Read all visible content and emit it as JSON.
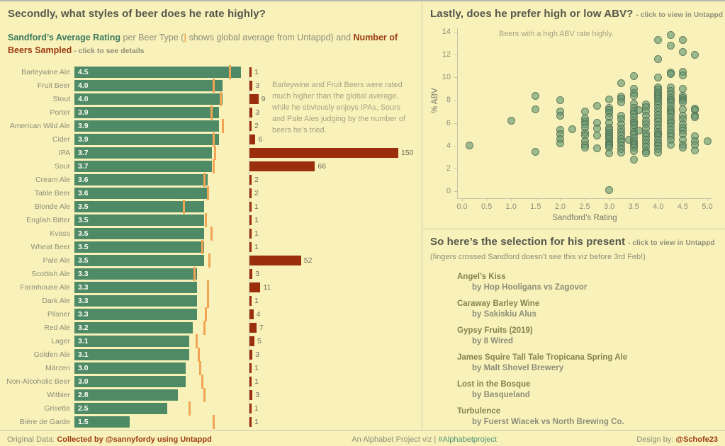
{
  "colors": {
    "background": "#f8f2ba",
    "rating_bar_green": "#4e8a66",
    "count_bar_red": "#9a2e0d",
    "global_tick_orange": "#f2a454",
    "header_gray": "#56574c",
    "muted_gray": "#8d8d79"
  },
  "left_panel": {
    "title": "Secondly, what styles of beer does he rate highly?",
    "subtitle": {
      "rating_label": "Sandford’s Average Rating",
      "mid1": " per Beer Type (",
      "pipe": "|",
      "mid2": " shows global average from Untappd) and ",
      "count_label": "Number of Beers Sampled",
      "suffix": " - click to see details"
    },
    "annotation": "Barleywine and Fruit Beers were rated much higher than the global average, while he obviously enjoys IPAs, Sours and Pale Ales judging by the number of beers he’s tried."
  },
  "right_top_panel": {
    "title": "Lastly, does he prefer high or low ABV?",
    "title_suffix": "- click to view in Untappd",
    "annotation": "Beers with a high ABV rate highly."
  },
  "right_bottom_panel": {
    "title": "So here’s the selection for his present",
    "title_suffix": "- click to view in Untappd",
    "subtitle": "(fingers crossed Sandford doesn’t see this viz before 3rd Feb!)",
    "beers": [
      {
        "name": "Angel’s Kiss",
        "brewery": "by Hop Hooligans vs Zagovor"
      },
      {
        "name": "Caraway Barley Wine",
        "brewery": "by Sakiskiu Alus"
      },
      {
        "name": "Gypsy Fruits (2019)",
        "brewery": "by 8 Wired"
      },
      {
        "name": "James Squire Tall Tale Tropicana Spring Ale",
        "brewery": "by Malt Shovel Brewery"
      },
      {
        "name": "Lost in the Bosque",
        "brewery": "by Basqueland"
      },
      {
        "name": "Turbulence",
        "brewery": "by Fuerst Wiacek vs North Brewing Co."
      }
    ]
  },
  "footer": {
    "prefix": "Original Data: ",
    "credit": "Collected by @sannyfordy using Untappd",
    "center_text": "An Alphabet Project viz | ",
    "hashtag": "#Alphabetproject",
    "design_prefix": "Design by: ",
    "designer": "@Schofe23"
  },
  "chart_data": [
    {
      "type": "bar",
      "title": "Sandford’s Average Rating per Beer Type and Number of Beers Sampled",
      "orientation": "horizontal",
      "rating_axis_max": 5,
      "categories": [
        "Barleywine Ale",
        "Fruit Beer",
        "Stout",
        "Porter",
        "American Wild Ale",
        "Cider",
        "IPA",
        "Sour",
        "Cream Ale",
        "Table Beer",
        "Blonde Ale",
        "English Bitter",
        "Kvass",
        "Wheat Beer",
        "Pale Ale",
        "Scottish Ale",
        "Farmhouse Ale",
        "Dark Ale",
        "Pilsner",
        "Red Ale",
        "Lager",
        "Golden Ale",
        "Märzen",
        "Non-Alcoholic Beer",
        "Witbier",
        "Grisette",
        "Bière de Garde"
      ],
      "series": [
        {
          "name": "Sandford’s Average Rating",
          "values": [
            4.5,
            4.0,
            4.0,
            3.9,
            3.9,
            3.9,
            3.7,
            3.7,
            3.6,
            3.6,
            3.5,
            3.5,
            3.5,
            3.5,
            3.5,
            3.3,
            3.3,
            3.3,
            3.3,
            3.2,
            3.1,
            3.1,
            3.0,
            3.0,
            2.8,
            2.5,
            1.5
          ]
        },
        {
          "name": "Global Average from Untappd",
          "values": [
            4.2,
            3.75,
            3.95,
            3.7,
            4.0,
            3.75,
            3.8,
            3.75,
            3.5,
            3.6,
            2.95,
            3.55,
            3.7,
            3.45,
            3.65,
            3.25,
            3.6,
            3.6,
            3.55,
            3.5,
            3.3,
            3.35,
            3.4,
            3.45,
            3.5,
            3.1,
            3.75
          ]
        },
        {
          "name": "Number of Beers Sampled",
          "values": [
            1,
            3,
            9,
            3,
            2,
            6,
            150,
            66,
            2,
            2,
            1,
            1,
            1,
            1,
            52,
            3,
            11,
            1,
            4,
            7,
            5,
            3,
            1,
            1,
            3,
            1,
            1
          ]
        }
      ]
    },
    {
      "type": "scatter",
      "title": "Lastly, does he prefer high or low ABV?",
      "xlabel": "Sandford’s Rating",
      "ylabel": "% ABV",
      "xlim": [
        0,
        5
      ],
      "ylim": [
        0,
        14
      ],
      "x_tick_labels": [
        "0.0",
        "0.5",
        "1.0",
        "1.5",
        "2.0",
        "2.5",
        "3.0",
        "3.5",
        "4.0",
        "4.5",
        "5.0"
      ],
      "y_tick_labels": [
        "0",
        "2",
        "4",
        "6",
        "8",
        "10",
        "12",
        "14"
      ],
      "annotation": "Beers with a high ABV rate highly.",
      "points": [
        [
          0.15,
          4.0
        ],
        [
          1.0,
          6.2
        ],
        [
          1.5,
          8.4
        ],
        [
          1.5,
          7.2
        ],
        [
          1.5,
          3.45
        ],
        [
          2.0,
          8.0
        ],
        [
          2.0,
          7.0
        ],
        [
          2.0,
          6.6
        ],
        [
          2.0,
          5.4
        ],
        [
          2.0,
          5.0
        ],
        [
          2.0,
          4.6
        ],
        [
          2.0,
          4.2
        ],
        [
          2.25,
          5.45
        ],
        [
          2.5,
          7.0
        ],
        [
          2.5,
          6.4
        ],
        [
          2.5,
          6.15
        ],
        [
          2.5,
          5.9
        ],
        [
          2.5,
          5.6
        ],
        [
          2.5,
          5.15
        ],
        [
          2.5,
          4.9
        ],
        [
          2.5,
          4.4
        ],
        [
          2.5,
          4.05
        ],
        [
          2.5,
          3.85
        ],
        [
          2.75,
          7.5
        ],
        [
          2.75,
          6.0
        ],
        [
          2.75,
          5.5
        ],
        [
          2.75,
          4.9
        ],
        [
          2.75,
          3.75
        ],
        [
          3.0,
          8.05
        ],
        [
          3.0,
          7.3
        ],
        [
          3.0,
          7.1
        ],
        [
          3.0,
          6.9
        ],
        [
          3.0,
          6.5
        ],
        [
          3.0,
          6.0
        ],
        [
          3.0,
          5.6
        ],
        [
          3.0,
          5.4
        ],
        [
          3.0,
          5.15
        ],
        [
          3.0,
          4.95
        ],
        [
          3.0,
          4.75
        ],
        [
          3.0,
          4.55
        ],
        [
          3.0,
          4.35
        ],
        [
          3.0,
          4.15
        ],
        [
          3.0,
          4.0
        ],
        [
          3.0,
          3.8
        ],
        [
          3.0,
          3.3
        ],
        [
          3.0,
          0.1
        ],
        [
          3.25,
          9.5
        ],
        [
          3.25,
          8.3
        ],
        [
          3.25,
          8.1
        ],
        [
          3.25,
          7.8
        ],
        [
          3.25,
          6.6
        ],
        [
          3.25,
          6.3
        ],
        [
          3.25,
          5.9
        ],
        [
          3.25,
          5.5
        ],
        [
          3.25,
          5.2
        ],
        [
          3.25,
          4.9
        ],
        [
          3.25,
          4.6
        ],
        [
          3.25,
          4.3
        ],
        [
          3.25,
          4.0
        ],
        [
          3.25,
          3.7
        ],
        [
          3.25,
          3.4
        ],
        [
          3.4,
          4.5
        ],
        [
          3.5,
          10.1
        ],
        [
          3.5,
          9.0
        ],
        [
          3.5,
          8.6
        ],
        [
          3.5,
          8.4
        ],
        [
          3.5,
          7.7
        ],
        [
          3.5,
          7.3
        ],
        [
          3.5,
          7.0
        ],
        [
          3.5,
          6.8
        ],
        [
          3.5,
          6.5
        ],
        [
          3.5,
          6.2
        ],
        [
          3.5,
          6.0
        ],
        [
          3.5,
          5.8
        ],
        [
          3.5,
          5.5
        ],
        [
          3.5,
          5.2
        ],
        [
          3.5,
          5.0
        ],
        [
          3.5,
          4.7
        ],
        [
          3.5,
          4.4
        ],
        [
          3.5,
          4.2
        ],
        [
          3.5,
          4.0
        ],
        [
          3.5,
          3.8
        ],
        [
          3.5,
          3.5
        ],
        [
          3.5,
          2.75
        ],
        [
          3.6,
          7.1
        ],
        [
          3.6,
          5.3
        ],
        [
          3.75,
          7.6
        ],
        [
          3.75,
          7.4
        ],
        [
          3.75,
          7.0
        ],
        [
          3.75,
          6.6
        ],
        [
          3.75,
          6.2
        ],
        [
          3.75,
          5.9
        ],
        [
          3.75,
          5.5
        ],
        [
          3.75,
          5.1
        ],
        [
          3.75,
          4.8
        ],
        [
          3.75,
          4.5
        ],
        [
          3.75,
          4.2
        ],
        [
          3.75,
          3.9
        ],
        [
          3.75,
          3.5
        ],
        [
          3.75,
          3.3
        ],
        [
          4.0,
          13.3
        ],
        [
          4.0,
          11.6
        ],
        [
          4.0,
          10.0
        ],
        [
          4.0,
          9.1
        ],
        [
          4.0,
          8.9
        ],
        [
          4.0,
          8.7
        ],
        [
          4.0,
          8.5
        ],
        [
          4.0,
          8.3
        ],
        [
          4.0,
          8.1
        ],
        [
          4.0,
          7.9
        ],
        [
          4.0,
          7.6
        ],
        [
          4.0,
          7.3
        ],
        [
          4.0,
          7.0
        ],
        [
          4.0,
          6.7
        ],
        [
          4.0,
          6.4
        ],
        [
          4.0,
          6.1
        ],
        [
          4.0,
          5.8
        ],
        [
          4.0,
          5.5
        ],
        [
          4.0,
          5.2
        ],
        [
          4.0,
          5.0
        ],
        [
          4.0,
          4.8
        ],
        [
          4.0,
          4.5
        ],
        [
          4.0,
          4.2
        ],
        [
          4.0,
          4.0
        ],
        [
          4.0,
          3.7
        ],
        [
          4.0,
          3.4
        ],
        [
          4.25,
          13.7
        ],
        [
          4.25,
          12.8
        ],
        [
          4.25,
          10.4
        ],
        [
          4.25,
          10.3
        ],
        [
          4.25,
          9.1
        ],
        [
          4.25,
          8.8
        ],
        [
          4.25,
          8.5
        ],
        [
          4.25,
          8.2
        ],
        [
          4.25,
          8.0
        ],
        [
          4.25,
          7.8
        ],
        [
          4.25,
          7.5
        ],
        [
          4.25,
          7.2
        ],
        [
          4.25,
          7.0
        ],
        [
          4.25,
          6.8
        ],
        [
          4.25,
          6.5
        ],
        [
          4.25,
          6.2
        ],
        [
          4.25,
          6.0
        ],
        [
          4.25,
          5.7
        ],
        [
          4.25,
          5.4
        ],
        [
          4.25,
          5.1
        ],
        [
          4.25,
          4.8
        ],
        [
          4.25,
          4.5
        ],
        [
          4.25,
          4.1
        ],
        [
          4.5,
          13.3
        ],
        [
          4.5,
          12.2
        ],
        [
          4.5,
          10.5
        ],
        [
          4.5,
          10.2
        ],
        [
          4.5,
          9.0
        ],
        [
          4.5,
          8.4
        ],
        [
          4.5,
          8.2
        ],
        [
          4.5,
          8.0
        ],
        [
          4.5,
          7.8
        ],
        [
          4.5,
          7.2
        ],
        [
          4.5,
          6.6
        ],
        [
          4.5,
          6.3
        ],
        [
          4.5,
          5.9
        ],
        [
          4.5,
          5.6
        ],
        [
          4.5,
          5.3
        ],
        [
          4.5,
          5.0
        ],
        [
          4.5,
          4.5
        ],
        [
          4.5,
          4.1
        ],
        [
          4.5,
          3.8
        ],
        [
          4.75,
          12.0
        ],
        [
          4.75,
          7.25
        ],
        [
          4.75,
          7.1
        ],
        [
          4.75,
          6.6
        ],
        [
          4.75,
          6.5
        ],
        [
          4.75,
          4.8
        ],
        [
          4.75,
          4.4
        ],
        [
          4.75,
          4.05
        ],
        [
          4.75,
          3.6
        ],
        [
          5.0,
          4.4
        ]
      ]
    }
  ]
}
